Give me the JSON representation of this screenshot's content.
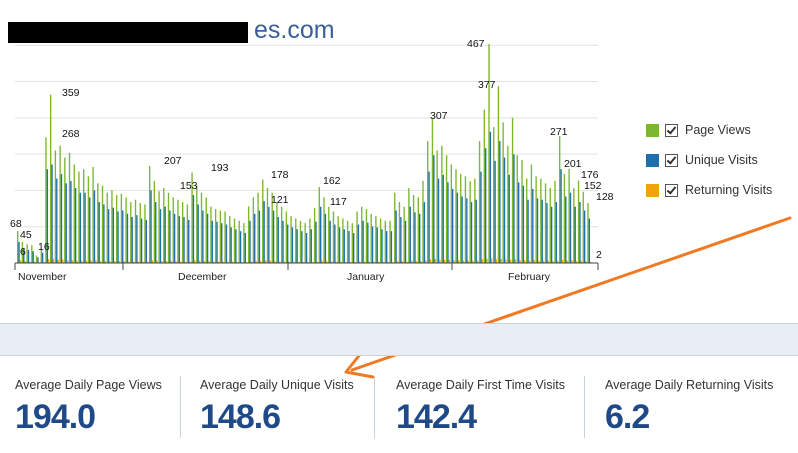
{
  "header": {
    "site_suffix": "es.com"
  },
  "legend": {
    "items": [
      {
        "label": "Page Views",
        "color": "#7cb82f"
      },
      {
        "label": "Unique Visits",
        "color": "#1f6fad"
      },
      {
        "label": "Returning Visits",
        "color": "#f0a30a"
      }
    ]
  },
  "chart_data": {
    "type": "bar",
    "x_labels": [
      "November",
      "December",
      "January",
      "February"
    ],
    "data_labels": [
      "68",
      "45",
      "6",
      "16",
      "359",
      "268",
      "207",
      "153",
      "193",
      "178",
      "121",
      "162",
      "117",
      "307",
      "467",
      "377",
      "271",
      "201",
      "176",
      "152",
      "128",
      "2"
    ],
    "series": [
      {
        "name": "Page Views",
        "values": [
          68,
          45,
          40,
          38,
          16,
          30,
          268,
          359,
          240,
          250,
          225,
          235,
          210,
          195,
          200,
          185,
          205,
          170,
          165,
          150,
          155,
          145,
          148,
          140,
          130,
          135,
          128,
          125,
          207,
          175,
          153,
          160,
          150,
          140,
          135,
          130,
          125,
          193,
          165,
          150,
          140,
          120,
          115,
          112,
          110,
          100,
          95,
          90,
          85,
          121,
          140,
          150,
          178,
          160,
          150,
          130,
          120,
          110,
          100,
          95,
          90,
          85,
          95,
          117,
          162,
          140,
          120,
          110,
          100,
          95,
          90,
          85,
          110,
          120,
          115,
          105,
          100,
          95,
          90,
          90,
          150,
          130,
          120,
          160,
          145,
          140,
          175,
          260,
          307,
          240,
          250,
          230,
          210,
          200,
          190,
          185,
          175,
          180,
          260,
          327,
          467,
          290,
          377,
          300,
          250,
          310,
          230,
          220,
          180,
          210,
          185,
          180,
          170,
          160,
          175,
          271,
          190,
          201,
          160,
          176,
          152,
          128
        ]
      },
      {
        "name": "Unique Visits",
        "values": [
          45,
          30,
          28,
          25,
          12,
          22,
          200,
          210,
          180,
          190,
          170,
          175,
          160,
          150,
          150,
          140,
          155,
          130,
          125,
          115,
          118,
          110,
          112,
          105,
          98,
          102,
          95,
          92,
          155,
          130,
          115,
          120,
          112,
          105,
          100,
          98,
          92,
          145,
          125,
          112,
          105,
          90,
          88,
          85,
          82,
          76,
          72,
          68,
          64,
          90,
          105,
          112,
          132,
          120,
          112,
          98,
          90,
          82,
          76,
          72,
          68,
          64,
          72,
          88,
          120,
          105,
          90,
          82,
          76,
          72,
          68,
          64,
          82,
          90,
          86,
          78,
          76,
          72,
          68,
          68,
          112,
          98,
          90,
          120,
          108,
          105,
          130,
          195,
          230,
          180,
          188,
          172,
          158,
          150,
          142,
          138,
          130,
          135,
          195,
          245,
          280,
          218,
          260,
          225,
          188,
          232,
          172,
          165,
          135,
          158,
          138,
          135,
          128,
          120,
          130,
          200,
          142,
          150,
          120,
          130,
          112,
          95
        ]
      },
      {
        "name": "Returning Visits",
        "values": [
          6,
          4,
          3,
          3,
          1,
          2,
          8,
          9,
          7,
          8,
          6,
          6,
          5,
          5,
          5,
          5,
          6,
          4,
          4,
          4,
          4,
          4,
          4,
          3,
          3,
          3,
          3,
          3,
          6,
          5,
          4,
          4,
          4,
          4,
          3,
          3,
          3,
          6,
          5,
          4,
          4,
          3,
          3,
          3,
          3,
          3,
          2,
          2,
          2,
          3,
          4,
          4,
          6,
          5,
          4,
          3,
          3,
          3,
          3,
          2,
          2,
          2,
          2,
          3,
          5,
          4,
          3,
          3,
          3,
          2,
          2,
          2,
          3,
          3,
          3,
          3,
          3,
          2,
          2,
          2,
          4,
          4,
          3,
          5,
          4,
          4,
          6,
          8,
          9,
          7,
          7,
          7,
          6,
          6,
          5,
          5,
          5,
          5,
          8,
          9,
          10,
          8,
          9,
          8,
          7,
          8,
          6,
          6,
          5,
          6,
          5,
          5,
          5,
          4,
          5,
          7,
          5,
          6,
          4,
          5,
          4,
          2
        ]
      }
    ]
  },
  "stats": [
    {
      "label": "Average Daily Page Views",
      "value": "194.0"
    },
    {
      "label": "Average Daily Unique Visits",
      "value": "148.6"
    },
    {
      "label": "Average Daily First Time Visits",
      "value": "142.4"
    },
    {
      "label": "Average Daily Returning Visits",
      "value": "6.2"
    }
  ],
  "annotation": {
    "color": "#f07a24"
  }
}
